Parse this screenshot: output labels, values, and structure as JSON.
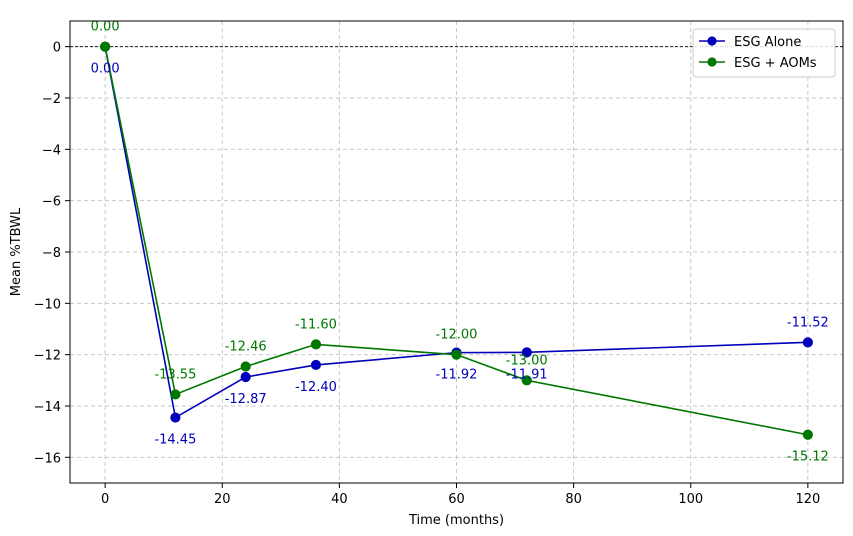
{
  "chart_data": {
    "type": "line",
    "title": "",
    "xlabel": "Time (months)",
    "ylabel": "Mean %TBWL",
    "xlim": [
      -6,
      126
    ],
    "ylim": [
      -17,
      1
    ],
    "xticks": [
      0,
      20,
      40,
      60,
      80,
      100,
      120
    ],
    "yticks": [
      0,
      -2,
      -4,
      -6,
      -8,
      -10,
      -12,
      -14,
      -16
    ],
    "xtick_labels": [
      "0",
      "20",
      "40",
      "60",
      "80",
      "100",
      "120"
    ],
    "ytick_labels": [
      "0",
      "−2",
      "−4",
      "−6",
      "−8",
      "−10",
      "−12",
      "−14",
      "−16"
    ],
    "grid": true,
    "reference_line_y": 0,
    "legend_position": "top-right",
    "series": [
      {
        "name": "ESG Alone",
        "color": "#0000bb",
        "label_position": "below-except-last",
        "points": [
          {
            "x": 0,
            "y": 0.0,
            "label": "0.00"
          },
          {
            "x": 12,
            "y": -14.45,
            "label": "-14.45"
          },
          {
            "x": 24,
            "y": -12.87,
            "label": "-12.87"
          },
          {
            "x": 36,
            "y": -12.4,
            "label": "-12.40"
          },
          {
            "x": 60,
            "y": -11.92,
            "label": "-11.92"
          },
          {
            "x": 72,
            "y": -11.91,
            "label": "-11.91"
          },
          {
            "x": 120,
            "y": -11.52,
            "label": "-11.52"
          }
        ]
      },
      {
        "name": "ESG + AOMs",
        "color": "#007700",
        "points": [
          {
            "x": 0,
            "y": 0.0,
            "label": "0.00"
          },
          {
            "x": 12,
            "y": -13.55,
            "label": "-13.55"
          },
          {
            "x": 24,
            "y": -12.46,
            "label": "-12.46"
          },
          {
            "x": 36,
            "y": -11.6,
            "label": "-11.60"
          },
          {
            "x": 60,
            "y": -12.0,
            "label": "-12.00"
          },
          {
            "x": 72,
            "y": -13.0,
            "label": "-13.00"
          },
          {
            "x": 120,
            "y": -15.12,
            "label": "-15.12"
          }
        ]
      }
    ]
  }
}
